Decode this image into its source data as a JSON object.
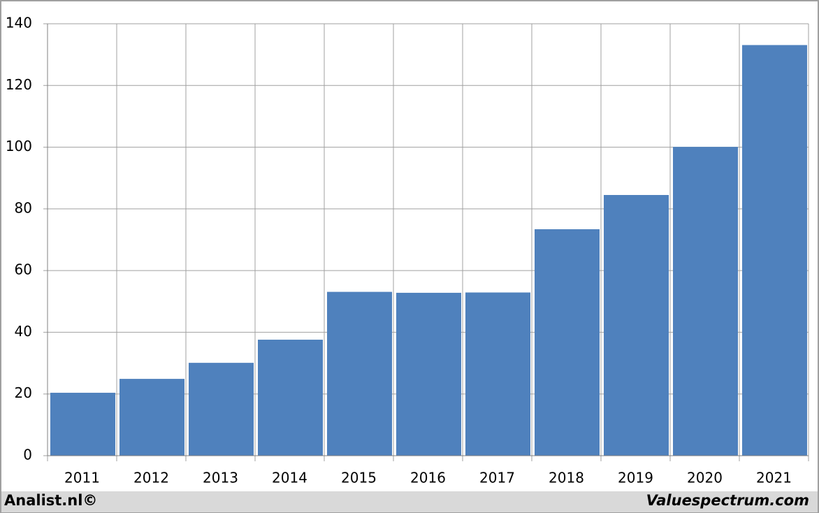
{
  "chart_data": {
    "type": "bar",
    "categories": [
      "2011",
      "2012",
      "2013",
      "2014",
      "2015",
      "2016",
      "2017",
      "2018",
      "2019",
      "2020",
      "2021"
    ],
    "values": [
      20.4,
      24.9,
      30.1,
      37.6,
      53.1,
      52.8,
      52.9,
      73.4,
      84.5,
      100.1,
      133.1
    ],
    "color": "#4f81bd",
    "ylim": [
      0,
      140
    ],
    "yticks": [
      0,
      20,
      40,
      60,
      80,
      100,
      120,
      140
    ],
    "grid": true,
    "footer_left": "Analist.nl©",
    "footer_right": "Valuespectrum.com"
  }
}
